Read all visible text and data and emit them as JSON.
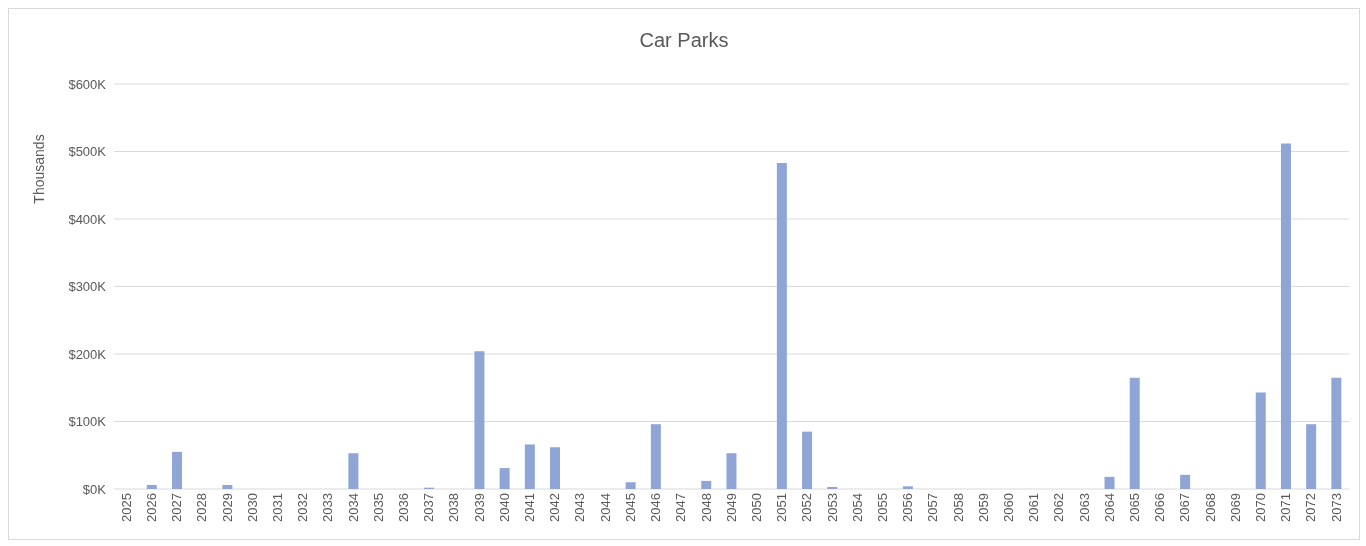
{
  "chart_data": {
    "type": "bar",
    "title": "Car Parks",
    "ylabel": "Thousands",
    "categories": [
      "2025",
      "2026",
      "2027",
      "2028",
      "2029",
      "2030",
      "2031",
      "2032",
      "2033",
      "2034",
      "2035",
      "2036",
      "2037",
      "2038",
      "2039",
      "2040",
      "2041",
      "2042",
      "2043",
      "2044",
      "2045",
      "2046",
      "2047",
      "2048",
      "2049",
      "2050",
      "2051",
      "2052",
      "2053",
      "2054",
      "2055",
      "2056",
      "2057",
      "2058",
      "2059",
      "2060",
      "2061",
      "2062",
      "2063",
      "2064",
      "2065",
      "2066",
      "2067",
      "2068",
      "2069",
      "2070",
      "2071",
      "2072",
      "2073"
    ],
    "values": [
      0,
      6,
      55,
      0,
      6,
      0,
      0,
      0,
      0,
      53,
      0,
      0,
      2,
      0,
      204,
      31,
      66,
      62,
      0,
      0,
      10,
      96,
      0,
      12,
      53,
      0,
      483,
      85,
      3,
      0,
      0,
      4,
      0,
      0,
      0,
      0,
      0,
      0,
      0,
      18,
      165,
      0,
      21,
      0,
      0,
      143,
      512,
      96,
      165
    ],
    "color": "#8fa5d6",
    "ylim": [
      0,
      600
    ],
    "yticks": [
      {
        "value": 0,
        "label": "$0K"
      },
      {
        "value": 100,
        "label": "$100K"
      },
      {
        "value": 200,
        "label": "$200K"
      },
      {
        "value": 300,
        "label": "$300K"
      },
      {
        "value": 400,
        "label": "$400K"
      },
      {
        "value": 500,
        "label": "$500K"
      },
      {
        "value": 600,
        "label": "$600K"
      }
    ],
    "grid": "y"
  }
}
